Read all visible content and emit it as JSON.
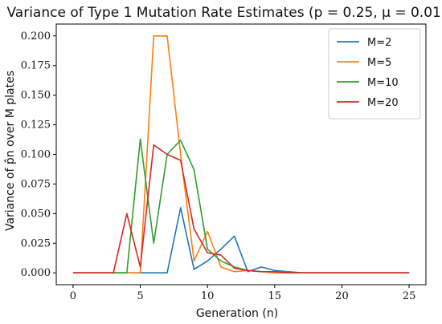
{
  "chart_data": {
    "type": "line",
    "title": "Variance of Type 1 Mutation Rate Estimates (p = 0.25, μ = 0.01)",
    "xlabel": "Generation (n)",
    "ylabel": "Variance of p̂n over M plates",
    "xlim": [
      -1.25,
      26.25
    ],
    "ylim": [
      -0.01,
      0.21
    ],
    "xticks": [
      0,
      5,
      10,
      15,
      20,
      25
    ],
    "xtick_labels": [
      "0",
      "5",
      "10",
      "15",
      "20",
      "25"
    ],
    "yticks": [
      0.0,
      0.025,
      0.05,
      0.075,
      0.1,
      0.125,
      0.15,
      0.175,
      0.2
    ],
    "ytick_labels": [
      "0.000",
      "0.025",
      "0.050",
      "0.075",
      "0.100",
      "0.125",
      "0.150",
      "0.175",
      "0.200"
    ],
    "grid": false,
    "legend_position": "top-right",
    "x": [
      0,
      1,
      2,
      3,
      4,
      5,
      6,
      7,
      8,
      9,
      10,
      11,
      12,
      13,
      14,
      15,
      16,
      17,
      18,
      19,
      20,
      21,
      22,
      23,
      24,
      25
    ],
    "series": [
      {
        "name": "M=2",
        "color": "#1f77b4",
        "values": [
          0,
          0,
          0,
          0,
          0,
          0,
          0,
          0,
          0.055,
          0.003,
          0.01,
          0.02,
          0.031,
          0.001,
          0.005,
          0.002,
          0.001,
          0,
          0,
          0,
          0,
          0,
          0,
          0,
          0,
          0
        ]
      },
      {
        "name": "M=5",
        "color": "#ff7f0e",
        "values": [
          0,
          0,
          0,
          0,
          0,
          0,
          0.2,
          0.2,
          0.1,
          0.01,
          0.035,
          0.005,
          0.001,
          0.002,
          0.001,
          0,
          0,
          0,
          0,
          0,
          0,
          0,
          0,
          0,
          0,
          0
        ]
      },
      {
        "name": "M=10",
        "color": "#2ca02c",
        "values": [
          0,
          0,
          0,
          0,
          0,
          0.113,
          0.025,
          0.1,
          0.112,
          0.087,
          0.02,
          0.01,
          0.005,
          0.002,
          0.001,
          0.001,
          0.001,
          0,
          0,
          0,
          0,
          0,
          0,
          0,
          0,
          0
        ]
      },
      {
        "name": "M=20",
        "color": "#d62728",
        "values": [
          0,
          0,
          0,
          0,
          0.05,
          0.005,
          0.108,
          0.1,
          0.095,
          0.037,
          0.017,
          0.015,
          0.004,
          0.002,
          0.001,
          0.001,
          0,
          0,
          0,
          0,
          0,
          0,
          0,
          0,
          0,
          0
        ]
      }
    ]
  }
}
